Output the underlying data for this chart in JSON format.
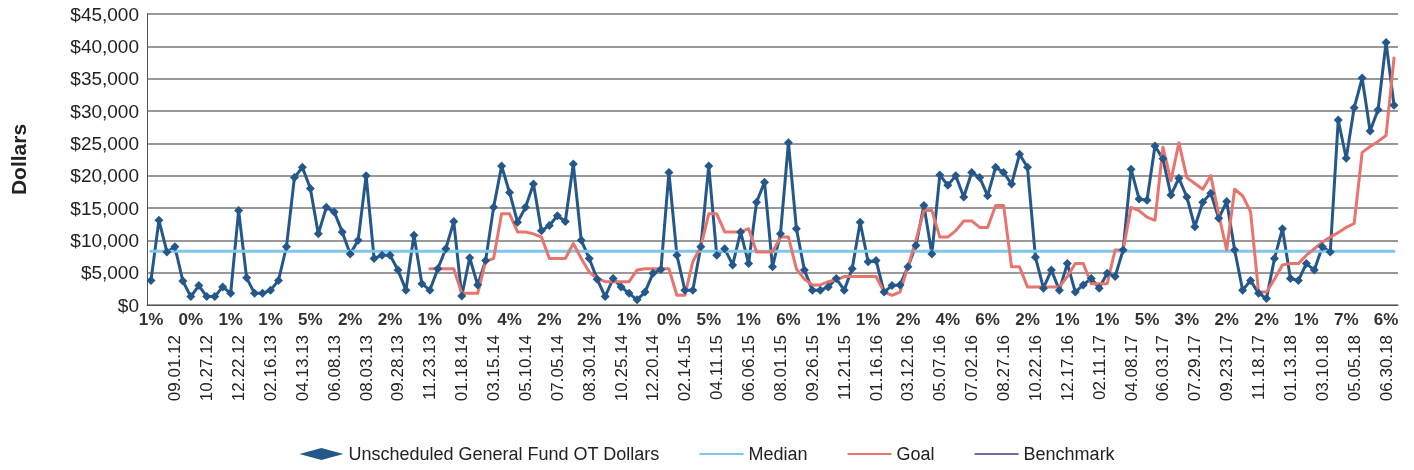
{
  "chart_data": {
    "type": "line",
    "ylabel": "Dollars",
    "categories": [
      null,
      null,
      null,
      "09.01.12",
      null,
      null,
      null,
      "10.27.12",
      null,
      null,
      null,
      "12.22.12",
      null,
      null,
      null,
      "02.16.13",
      null,
      null,
      null,
      "04.13.13",
      null,
      null,
      null,
      "06.08.13",
      null,
      null,
      null,
      "08.03.13",
      null,
      null,
      null,
      "09.28.13",
      null,
      null,
      null,
      "11.23.13",
      null,
      null,
      null,
      "01.18.14",
      null,
      null,
      null,
      "03.15.14",
      null,
      null,
      null,
      "05.10.14",
      null,
      null,
      null,
      "07.05.14",
      null,
      null,
      null,
      "08.30.14",
      null,
      null,
      null,
      "10.25.14",
      null,
      null,
      null,
      "12.20.14",
      null,
      null,
      null,
      "02.14.15",
      null,
      null,
      null,
      "04.11.15",
      null,
      null,
      null,
      "06.06.15",
      null,
      null,
      null,
      "08.01.15",
      null,
      null,
      null,
      "09.26.15",
      null,
      null,
      null,
      "11.21.15",
      null,
      null,
      null,
      "01.16.16",
      null,
      null,
      null,
      "03.12.16",
      null,
      null,
      null,
      "05.07.16",
      null,
      null,
      null,
      "07.02.16",
      null,
      null,
      null,
      "08.27.16",
      null,
      null,
      null,
      "10.22.16",
      null,
      null,
      null,
      "12.17.16",
      null,
      null,
      null,
      "02.11.17",
      null,
      null,
      null,
      "04.08.17",
      null,
      null,
      null,
      "06.03.17",
      null,
      null,
      null,
      "07.29.17",
      null,
      null,
      null,
      "09.23.17",
      null,
      null,
      null,
      "11.18.17",
      null,
      null,
      null,
      "01.13.18",
      null,
      null,
      null,
      "03.10.18",
      null,
      null,
      null,
      "05.05.18",
      null,
      null,
      null,
      "06.30.18",
      null
    ],
    "series": [
      {
        "name": "Unscheduled General Fund OT Dollars",
        "color": "#24588a",
        "marker": "diamond",
        "values": [
          3800,
          13100,
          8200,
          9000,
          3700,
          1300,
          3000,
          1300,
          1300,
          2800,
          1800,
          14600,
          4200,
          1800,
          1800,
          2300,
          3800,
          9000,
          19700,
          21300,
          18000,
          11000,
          15100,
          14400,
          11300,
          7900,
          10000,
          20000,
          7200,
          7700,
          7700,
          5400,
          2300,
          10800,
          3300,
          2300,
          5600,
          8700,
          12900,
          1400,
          7300,
          3100,
          6900,
          15100,
          21500,
          17400,
          12800,
          15100,
          18700,
          11500,
          12300,
          13800,
          12900,
          21800,
          10000,
          7200,
          4000,
          1300,
          4100,
          2800,
          1800,
          800,
          2000,
          4900,
          5500,
          20500,
          7700,
          2300,
          2300,
          9000,
          21500,
          7700,
          8700,
          6200,
          11300,
          6400,
          15900,
          19000,
          5900,
          11000,
          25100,
          11800,
          5400,
          2300,
          2300,
          2800,
          4100,
          2300,
          5600,
          12800,
          6700,
          6900,
          2000,
          3000,
          3100,
          5900,
          9200,
          15400,
          7900,
          20100,
          18500,
          20000,
          16700,
          20500,
          19700,
          16900,
          21300,
          20500,
          18700,
          23300,
          21300,
          7400,
          2600,
          5400,
          2300,
          6400,
          2000,
          3100,
          4100,
          2600,
          4900,
          4400,
          8500,
          21000,
          16400,
          16200,
          24600,
          22600,
          17000,
          19600,
          16700,
          12100,
          15900,
          17300,
          13400,
          16000,
          8500,
          2300,
          3800,
          1800,
          1000,
          7200,
          11800,
          4100,
          3800,
          6400,
          5400,
          9000,
          8200,
          28600,
          22700,
          30500,
          35100,
          26900,
          30200,
          40600,
          30900
        ]
      },
      {
        "name": "Median",
        "color": "#7fc6ec",
        "marker": "none",
        "values": [
          8300,
          8300,
          8300,
          8300,
          8300,
          8300,
          8300,
          8300,
          8300,
          8300,
          8300,
          8300,
          8300,
          8300,
          8300,
          8300,
          8300,
          8300,
          8300,
          8300,
          8300,
          8300,
          8300,
          8300,
          8300,
          8300,
          8300,
          8300,
          8300,
          8300,
          8300,
          8300,
          8300,
          8300,
          8300,
          8300,
          8300,
          8300,
          8300,
          8300,
          8300,
          8300,
          8300,
          8300,
          8300,
          8300,
          8300,
          8300,
          8300,
          8300,
          8300,
          8300,
          8300,
          8300,
          8300,
          8300,
          8300,
          8300,
          8300,
          8300,
          8300,
          8300,
          8300,
          8300,
          8300,
          8300,
          8300,
          8300,
          8300,
          8300,
          8300,
          8300,
          8300,
          8300,
          8300,
          8300,
          8300,
          8300,
          8300,
          8300,
          8300,
          8300,
          8300,
          8300,
          8300,
          8300,
          8300,
          8300,
          8300,
          8300,
          8300,
          8300,
          8300,
          8300,
          8300,
          8300,
          8300,
          8300,
          8300,
          8300,
          8300,
          8300,
          8300,
          8300,
          8300,
          8300,
          8300,
          8300,
          8300,
          8300,
          8300,
          8300,
          8300,
          8300,
          8300,
          8300,
          8300,
          8300,
          8300,
          8300,
          8300,
          8300,
          8300,
          8300,
          8300,
          8300,
          8300,
          8300,
          8300,
          8300,
          8300,
          8300,
          8300,
          8300,
          8300,
          8300,
          8300,
          8300,
          8300,
          8300,
          8300,
          8300,
          8300,
          8300,
          8300,
          8300,
          8300,
          8300,
          8300,
          8300,
          8300,
          8300,
          8300,
          8300,
          8300,
          8300,
          8300
        ]
      },
      {
        "name": "Goal",
        "color": "#e8746e",
        "marker": "none",
        "values": [
          null,
          null,
          null,
          null,
          null,
          null,
          null,
          null,
          null,
          null,
          null,
          null,
          null,
          null,
          null,
          null,
          null,
          null,
          null,
          null,
          null,
          null,
          null,
          null,
          null,
          null,
          null,
          null,
          null,
          null,
          null,
          null,
          null,
          null,
          null,
          5600,
          5600,
          5600,
          5600,
          1800,
          1800,
          1800,
          6700,
          7200,
          14100,
          14100,
          11300,
          11300,
          11000,
          10500,
          7200,
          7200,
          7200,
          9500,
          7200,
          5100,
          4100,
          3600,
          3600,
          3600,
          3600,
          5400,
          5600,
          5600,
          5600,
          5600,
          1500,
          1500,
          6700,
          9000,
          14100,
          14100,
          11300,
          11300,
          11300,
          11800,
          8200,
          8200,
          8200,
          10500,
          10500,
          5600,
          4000,
          3100,
          3100,
          3600,
          3900,
          4400,
          4400,
          4400,
          4400,
          4400,
          2000,
          1500,
          2000,
          5900,
          10000,
          14600,
          14600,
          10500,
          10500,
          11500,
          13000,
          13000,
          12000,
          12000,
          15400,
          15400,
          5900,
          5900,
          2800,
          2800,
          2800,
          2800,
          2800,
          4400,
          6400,
          6400,
          3300,
          3300,
          3300,
          8500,
          8500,
          15100,
          14600,
          13600,
          13100,
          24400,
          19200,
          25100,
          19700,
          18800,
          17900,
          20000,
          14000,
          8500,
          17900,
          16900,
          14400,
          2000,
          2000,
          4000,
          6200,
          6400,
          6400,
          7700,
          8700,
          9700,
          10500,
          11200,
          12000,
          12600,
          23600,
          24500,
          25300,
          26200,
          38200
        ]
      },
      {
        "name": "Benchmark",
        "color": "#7b68a8",
        "marker": "none",
        "values": [
          null,
          null,
          null,
          null,
          null,
          null,
          null,
          null,
          null,
          null,
          null,
          null,
          null,
          null,
          null,
          null,
          null,
          null,
          null,
          null,
          null,
          null,
          null,
          null,
          null,
          null,
          null,
          null,
          null,
          null,
          null,
          null,
          null,
          null,
          null,
          null,
          null,
          null,
          null,
          null,
          null,
          null,
          null,
          null,
          null,
          null,
          null,
          null,
          null,
          null,
          null,
          null,
          null,
          null,
          null,
          null,
          null,
          null,
          null,
          null,
          null,
          null,
          null,
          null,
          null,
          null,
          null,
          null,
          null,
          null,
          null,
          null,
          null,
          null,
          null,
          null,
          null,
          null,
          null,
          null,
          null,
          null,
          null,
          null,
          null,
          null,
          null,
          null,
          null,
          null,
          null,
          null,
          null,
          null,
          null,
          null,
          null,
          null,
          null,
          null,
          null,
          null,
          null,
          null,
          null,
          null,
          null,
          null,
          null,
          null,
          null,
          null,
          null,
          null,
          null,
          null,
          null,
          null,
          null,
          null,
          null,
          null,
          null,
          null,
          null,
          null,
          null,
          null,
          null,
          null,
          null,
          null,
          null,
          null,
          null,
          null,
          null,
          null,
          null,
          null,
          null,
          null,
          null,
          null,
          null,
          null,
          null,
          null,
          null,
          null,
          null,
          null,
          null,
          null,
          null,
          null,
          null
        ]
      }
    ],
    "ylim": [
      0,
      45000
    ],
    "yticks": [
      {
        "value": 0,
        "label": "$0"
      },
      {
        "value": 5000,
        "label": "$5,000"
      },
      {
        "value": 10000,
        "label": "$10,000"
      },
      {
        "value": 15000,
        "label": "$15,000"
      },
      {
        "value": 20000,
        "label": "$20,000"
      },
      {
        "value": 25000,
        "label": "$25,000"
      },
      {
        "value": 30000,
        "label": "$30,000"
      },
      {
        "value": 35000,
        "label": "$35,000"
      },
      {
        "value": 40000,
        "label": "$40,000"
      },
      {
        "value": 45000,
        "label": "$45,000"
      }
    ],
    "grid": "y",
    "legend": "bottom",
    "annotations": [
      "1%",
      "0%",
      "1%",
      "1%",
      "5%",
      "2%",
      "2%",
      "1%",
      "0%",
      "4%",
      "2%",
      "2%",
      "1%",
      "0%",
      "5%",
      "1%",
      "6%",
      "1%",
      "1%",
      "2%",
      "4%",
      "6%",
      "2%",
      "1%",
      "1%",
      "5%",
      "3%",
      "2%",
      "2%",
      "1%",
      "7%",
      "6%"
    ]
  }
}
